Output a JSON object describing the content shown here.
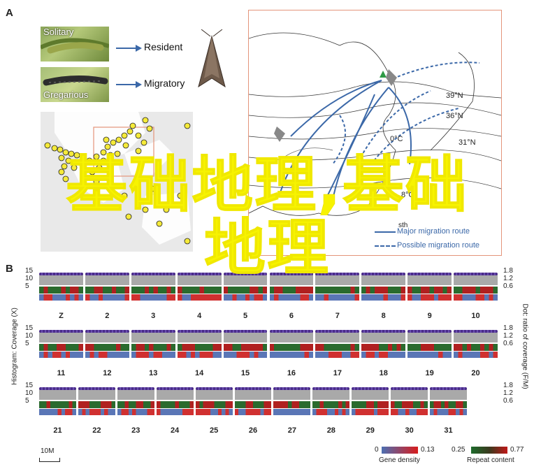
{
  "panelA": {
    "letter": "A",
    "photos": [
      {
        "label": "Solitary",
        "top": true
      },
      {
        "label": "Gregarious",
        "top": false
      }
    ],
    "morphs": [
      "Resident",
      "Migratory"
    ],
    "isotherms": [
      "39°N",
      "36°N",
      "0°C",
      "31°N",
      "8°C"
    ],
    "legend": [
      {
        "text": "Major migration route"
      },
      {
        "text": "Possible migration route"
      }
    ],
    "legend_partial": "sth"
  },
  "panelB": {
    "letter": "B",
    "left_axis_label": "Histogram: Coverage (X)",
    "right_axis_label": "Dot: ratio of coverage (F/M)",
    "left_ticks": [
      "15",
      "10",
      "5"
    ],
    "right_ticks": [
      "1.8",
      "1.2",
      "0.6"
    ],
    "rows": [
      [
        "Z",
        "2",
        "3",
        "4",
        "5",
        "6",
        "7",
        "8",
        "9",
        "10"
      ],
      [
        "11",
        "12",
        "13",
        "14",
        "15",
        "16",
        "17",
        "18",
        "19",
        "20"
      ],
      [
        "21",
        "22",
        "23",
        "24",
        "25",
        "26",
        "27",
        "28",
        "29",
        "30",
        "31"
      ]
    ],
    "scale_bar": "10M",
    "gene_density": {
      "title": "Gene density",
      "min": "0",
      "max": "0.13"
    },
    "repeat_content": {
      "title": "Repeat content",
      "min": "0.25",
      "max": "0.77"
    }
  },
  "overlay_text": [
    "基础地理,基础",
    "地理"
  ],
  "colors": {
    "accent_blue": "#3b68a8",
    "map_border": "#e4957b",
    "overlay": "#f7f300",
    "dot": "#4b2c8a",
    "hist": "#a9a9a9"
  }
}
